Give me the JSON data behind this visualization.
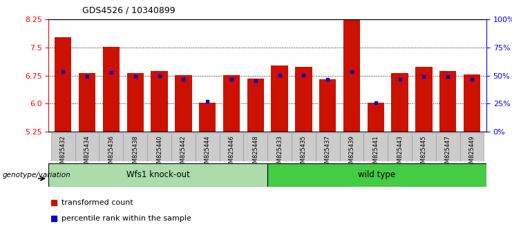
{
  "title": "GDS4526 / 10340899",
  "categories": [
    "GSM825432",
    "GSM825434",
    "GSM825436",
    "GSM825438",
    "GSM825440",
    "GSM825442",
    "GSM825444",
    "GSM825446",
    "GSM825448",
    "GSM825433",
    "GSM825435",
    "GSM825437",
    "GSM825439",
    "GSM825441",
    "GSM825443",
    "GSM825445",
    "GSM825447",
    "GSM825449"
  ],
  "red_values": [
    7.78,
    6.82,
    7.52,
    6.82,
    6.87,
    6.77,
    6.02,
    6.77,
    6.68,
    7.02,
    6.98,
    6.65,
    8.55,
    6.02,
    6.82,
    6.98,
    6.87,
    6.78
  ],
  "blue_values": [
    6.85,
    6.72,
    6.83,
    6.72,
    6.75,
    6.65,
    6.07,
    6.65,
    6.62,
    6.77,
    6.77,
    6.65,
    6.85,
    6.02,
    6.65,
    6.72,
    6.72,
    6.65
  ],
  "ymin": 5.25,
  "ymax": 8.25,
  "yticks": [
    5.25,
    6.0,
    6.75,
    7.5,
    8.25
  ],
  "y2ticks": [
    0,
    25,
    50,
    75,
    100
  ],
  "group1_label": "Wfs1 knock-out",
  "group2_label": "wild type",
  "group1_count": 9,
  "group2_count": 9,
  "genotype_label": "genotype/variation",
  "legend_red": "transformed count",
  "legend_blue": "percentile rank within the sample",
  "bar_color": "#cc1100",
  "dot_color": "#0000cc",
  "group1_bg": "#aaddaa",
  "group2_bg": "#44cc44",
  "tick_bg": "#cccccc",
  "bar_bottom": 5.25,
  "bar_width": 0.7
}
